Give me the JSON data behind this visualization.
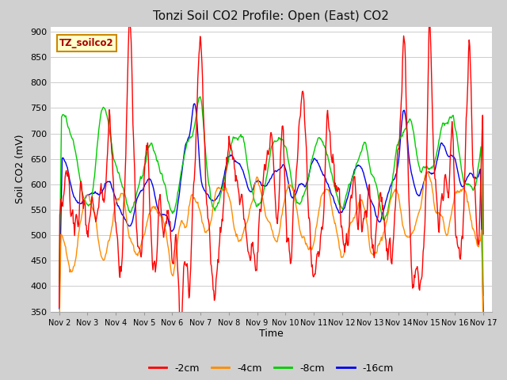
{
  "title": "Tonzi Soil CO2 Profile: Open (East) CO2",
  "xlabel": "Time",
  "ylabel": "Soil CO2 (mV)",
  "ylim": [
    350,
    910
  ],
  "yticks": [
    350,
    400,
    450,
    500,
    550,
    600,
    650,
    700,
    750,
    800,
    850,
    900
  ],
  "x_labels": [
    "Nov 2",
    "Nov 3",
    "Nov 4",
    "Nov 5",
    "Nov 6",
    "Nov 7",
    "Nov 8",
    "Nov 9",
    "Nov 10",
    "Nov 11",
    "Nov 12",
    "Nov 13",
    "Nov 14",
    "Nov 15",
    "Nov 16",
    "Nov 17"
  ],
  "legend_labels": [
    "-2cm",
    "-4cm",
    "-8cm",
    "-16cm"
  ],
  "colors": [
    "#ff0000",
    "#ff8c00",
    "#00cc00",
    "#0000ee"
  ],
  "watermark_text": "TZ_soilco2",
  "watermark_bg": "#ffffcc",
  "watermark_edge": "#cc8800",
  "fig_bg": "#d0d0d0",
  "plot_bg": "#ffffff",
  "grid_color": "#cccccc"
}
